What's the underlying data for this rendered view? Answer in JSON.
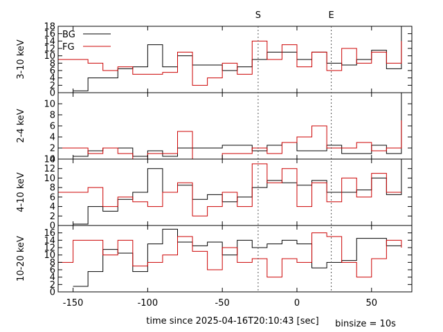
{
  "chart_data": {
    "type": "line",
    "step": true,
    "xlabel": "time since 2025-04-16T20:10:43 [sec]",
    "binsize_label": "binsize = 10s",
    "xlim": [
      -160,
      77
    ],
    "x_ticks": [
      -150,
      -100,
      -50,
      0,
      50
    ],
    "markers": [
      {
        "label": "S",
        "x": -26
      },
      {
        "label": "E",
        "x": 23
      }
    ],
    "legend": {
      "placement": "top-left",
      "entries": [
        {
          "name": "BG",
          "color": "#000000"
        },
        {
          "name": "FG",
          "color": "#cc0000"
        }
      ]
    },
    "bin_edges": [
      -160,
      -150,
      -140,
      -130,
      -120,
      -110,
      -100,
      -90,
      -80,
      -70,
      -60,
      -50,
      -40,
      -30,
      -20,
      -10,
      0,
      10,
      20,
      30,
      40,
      50,
      60,
      70
    ],
    "panels": [
      {
        "ylabel": "3-10 keV",
        "ylim": [
          0,
          18
        ],
        "yticks": [
          0,
          2,
          4,
          6,
          8,
          10,
          12,
          14,
          16,
          18
        ],
        "series": [
          {
            "name": "BG",
            "color": "#000000",
            "bg_start": -150,
            "values": [
              null,
              0.5,
              4,
              4,
              6.5,
              7,
              13,
              7,
              10,
              7.5,
              7.5,
              6,
              7,
              9,
              11,
              11,
              9,
              11,
              8,
              7.5,
              9,
              11.5,
              6.5
            ],
            "spike": 18
          },
          {
            "name": "FG",
            "color": "#cc0000",
            "values": [
              9,
              9,
              8,
              6,
              7,
              5,
              5,
              5.5,
              11,
              2,
              4,
              8,
              5,
              14,
              9,
              13,
              7,
              11,
              6,
              12,
              8,
              11,
              8
            ],
            "spike": 14
          }
        ]
      },
      {
        "ylabel": "2-4 keV",
        "ylim": [
          0,
          12
        ],
        "yticks": [
          0,
          2,
          4,
          6,
          8,
          10
        ],
        "series": [
          {
            "name": "BG",
            "color": "#000000",
            "bg_start": -150,
            "values": [
              null,
              0.5,
              1.5,
              2,
              2,
              0.5,
              1.5,
              0.5,
              2,
              2,
              2,
              2.5,
              2.5,
              1.5,
              2.5,
              3,
              1.5,
              1.5,
              2.5,
              1,
              1,
              2.5,
              1
            ],
            "spike": 12
          },
          {
            "name": "FG",
            "color": "#cc0000",
            "values": [
              2,
              2,
              1,
              2,
              1,
              0,
              1,
              1,
              5,
              0,
              0,
              1,
              1,
              2,
              1,
              3,
              4,
              6,
              2,
              2,
              3,
              1.5,
              2
            ],
            "spike": 7
          }
        ]
      },
      {
        "ylabel": "4-10 keV",
        "ylim": [
          0,
          14
        ],
        "yticks": [
          0,
          2,
          4,
          6,
          8,
          10,
          12,
          14
        ],
        "series": [
          {
            "name": "BG",
            "color": "#000000",
            "bg_start": -150,
            "values": [
              null,
              0.3,
              4,
              3,
              5.5,
              7,
              12,
              7,
              8.5,
              5.5,
              6.5,
              5,
              6,
              8,
              9.5,
              9,
              8.5,
              9.5,
              7,
              7,
              7.5,
              10,
              6.5
            ],
            "spike": 14
          },
          {
            "name": "FG",
            "color": "#cc0000",
            "values": [
              7,
              7,
              8,
              4,
              6,
              5,
              4,
              7,
              9,
              2,
              4,
              7,
              4,
              13,
              9,
              12,
              4,
              9,
              5,
              10,
              6,
              11,
              7
            ],
            "spike": 7
          }
        ]
      },
      {
        "ylabel": "10-20 keV",
        "ylim": [
          0,
          18
        ],
        "yticks": [
          0,
          2,
          4,
          6,
          8,
          10,
          12,
          14,
          16
        ],
        "series": [
          {
            "name": "BG",
            "color": "#000000",
            "bg_start": -150,
            "values": [
              null,
              1.5,
              5.5,
              11.5,
              10.5,
              5.5,
              13,
              17,
              13.5,
              12.5,
              13.5,
              10,
              14,
              12,
              13,
              14,
              13,
              6.5,
              8,
              8.5,
              14.5,
              14.5,
              12.5
            ],
            "spike": 12.5
          },
          {
            "name": "FG",
            "color": "#cc0000",
            "values": [
              8,
              14,
              14,
              10,
              14,
              7,
              8,
              10,
              15,
              11,
              6,
              12,
              8,
              9,
              4,
              9,
              8,
              16,
              15,
              8,
              4,
              9,
              14
            ],
            "spike": 12
          }
        ]
      }
    ]
  }
}
